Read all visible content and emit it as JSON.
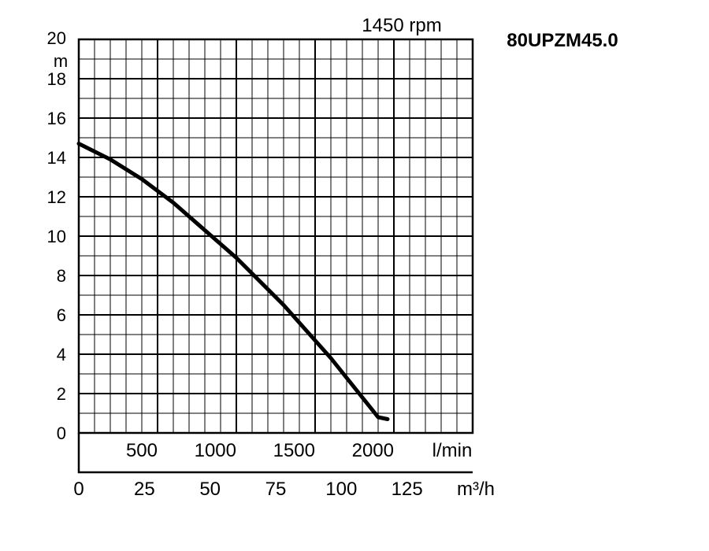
{
  "chart_data": {
    "type": "line",
    "model": "80UPZM45.0",
    "speed": "1450 rpm",
    "y_unit": "m",
    "x_unit_primary": "l/min",
    "x_unit_secondary": "m³/h",
    "ylim": [
      0,
      20
    ],
    "xlim": [
      0,
      2500
    ],
    "y_ticks": [
      "0",
      "2",
      "4",
      "6",
      "8",
      "10",
      "12",
      "14",
      "16",
      "18",
      "20"
    ],
    "x_ticks_primary": [
      {
        "value": 500,
        "label": "500"
      },
      {
        "value": 1000,
        "label": "1000"
      },
      {
        "value": 1500,
        "label": "1500"
      },
      {
        "value": 2000,
        "label": "2000"
      }
    ],
    "x_ticks_secondary": [
      {
        "value": 0,
        "label": "0"
      },
      {
        "value": 25,
        "label": "25"
      },
      {
        "value": 50,
        "label": "50"
      },
      {
        "value": 75,
        "label": "75"
      },
      {
        "value": 100,
        "label": "100"
      },
      {
        "value": 125,
        "label": "125"
      }
    ],
    "grid": true,
    "series": [
      {
        "x": [
          0,
          100,
          200,
          300,
          400,
          500,
          600,
          700,
          800,
          900,
          1000,
          1100,
          1200,
          1300,
          1400,
          1500,
          1600,
          1700,
          1800,
          1900,
          1960
        ],
        "y": [
          14.7,
          14.3,
          13.9,
          13.4,
          12.9,
          12.3,
          11.7,
          11.0,
          10.3,
          9.6,
          8.9,
          8.1,
          7.3,
          6.5,
          5.6,
          4.7,
          3.8,
          2.8,
          1.8,
          0.8,
          0.7
        ]
      }
    ]
  }
}
